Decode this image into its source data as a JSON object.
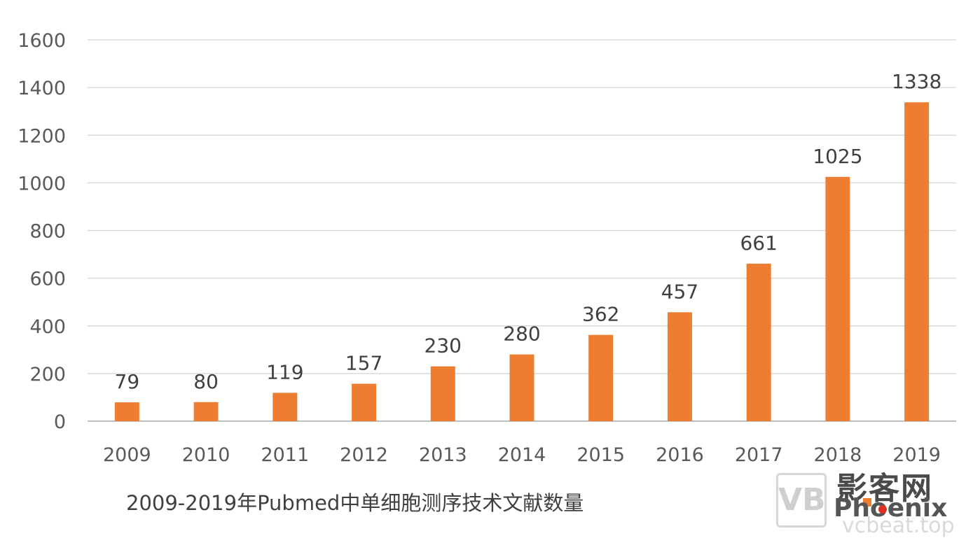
{
  "chart_data": {
    "type": "bar",
    "title": "2009-2019年Pubmed中单细胞测序技术文献数量",
    "categories": [
      "2009",
      "2010",
      "2011",
      "2012",
      "2013",
      "2014",
      "2015",
      "2016",
      "2017",
      "2018",
      "2019"
    ],
    "values": [
      79,
      80,
      119,
      157,
      230,
      280,
      362,
      457,
      661,
      1025,
      1338
    ],
    "data_labels": [
      "79",
      "80",
      "119",
      "157",
      "230",
      "280",
      "362",
      "457",
      "661",
      "1025",
      "1338"
    ],
    "xlabel": "",
    "ylabel": "",
    "ylim": [
      0,
      1600
    ],
    "yticks": [
      0,
      200,
      400,
      600,
      800,
      1000,
      1200,
      1400,
      1600
    ],
    "grid": true,
    "bar_color": "#ed7d31"
  },
  "watermark": {
    "logo_glyph": "VB",
    "name_cn": "影客网",
    "name_en": "Phoenix",
    "domain": "vcbeat.top"
  }
}
